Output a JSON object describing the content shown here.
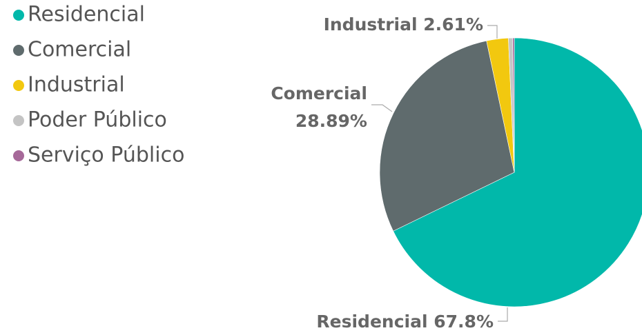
{
  "chart_data": {
    "type": "pie",
    "categories": [
      "Residencial",
      "Comercial",
      "Industrial",
      "Poder Público",
      "Serviço Público"
    ],
    "values": [
      67.8,
      28.89,
      2.61,
      0.5,
      0.2
    ],
    "value_labels": [
      "67.8%",
      "28.89%",
      "2.61%",
      null,
      null
    ],
    "colors": [
      "#01b8aa",
      "#5f6b6d",
      "#f2c80f",
      "#c4c4c4",
      "#a66999"
    ],
    "legend": "top-left"
  }
}
